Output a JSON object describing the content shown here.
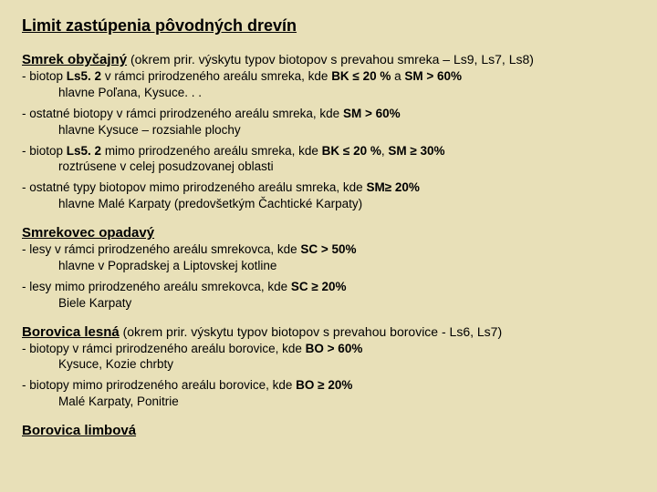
{
  "colors": {
    "background": "#e8e0b8",
    "text": "#000000"
  },
  "title": "Limit zastúpenia pôvodných drevín",
  "sections": [
    {
      "heading": "Smrek obyčajný",
      "suffix": " (okrem prir. výskytu typov biotopov s prevahou smreka – Ls9, Ls7, Ls8)",
      "items": [
        {
          "bullet_pre": "-  biotop ",
          "bullet_strong": "Ls5. 2",
          "bullet_post": " v rámci prirodzeného areálu smreka, kde ",
          "bullet_strong2": "BK ≤ 20 %",
          "bullet_mid": " a ",
          "bullet_strong3": "SM > 60%",
          "detail": "hlavne Poľana, Kysuce. . ."
        },
        {
          "bullet_pre": "- ostatné biotopy v rámci prirodzeného areálu smreka, kde ",
          "bullet_strong": "SM > 60%",
          "bullet_post": "",
          "detail": "hlavne Kysuce – rozsiahle plochy"
        },
        {
          "bullet_pre": "- biotop ",
          "bullet_strong": "Ls5. 2",
          "bullet_post": " mimo prirodzeného areálu smreka, kde ",
          "bullet_strong2": "BK ≤ 20 %",
          "bullet_mid": ", ",
          "bullet_strong3": "SM ≥ 30%",
          "detail": "roztrúsene v celej posudzovanej oblasti"
        },
        {
          "bullet_pre": "- ostatné typy biotopov mimo prirodzeného areálu smreka, kde ",
          "bullet_strong": "SM≥ 20%",
          "bullet_post": "",
          "detail": "hlavne Malé Karpaty (predovšetkým Čachtické Karpaty)"
        }
      ]
    },
    {
      "heading": "Smrekovec opadavý",
      "suffix": "",
      "items": [
        {
          "bullet_pre": "- lesy v rámci prirodzeného areálu smrekovca, kde ",
          "bullet_strong": "SC > 50%",
          "bullet_post": "",
          "detail": "hlavne v Popradskej a Liptovskej kotline"
        },
        {
          "bullet_pre": "- lesy mimo prirodzeného areálu smrekovca, kde ",
          "bullet_strong": "SC ≥ 20%",
          "bullet_post": "",
          "detail": "Biele Karpaty"
        }
      ]
    },
    {
      "heading": "Borovica lesná",
      "suffix": " (okrem prir. výskytu typov biotopov s prevahou borovice - Ls6, Ls7)",
      "items": [
        {
          "bullet_pre": "- biotopy v rámci prirodzeného areálu borovice, kde ",
          "bullet_strong": "BO > 60%",
          "bullet_post": "",
          "detail": "Kysuce, Kozie chrbty"
        },
        {
          "bullet_pre": "- biotopy mimo prirodzeného areálu borovice, kde ",
          "bullet_strong": "BO ≥ 20%",
          "bullet_post": "",
          "detail": "Malé Karpaty, Ponitrie"
        }
      ]
    },
    {
      "heading": "Borovica limbová",
      "suffix": "",
      "items": []
    }
  ]
}
